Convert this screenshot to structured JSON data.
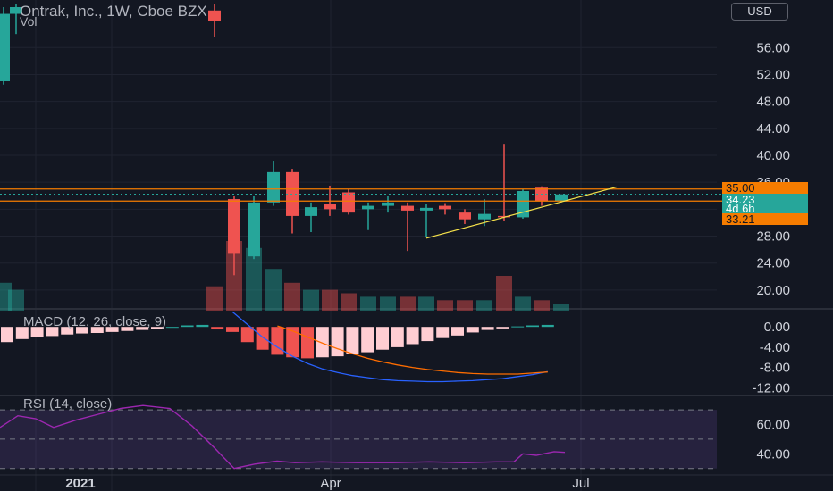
{
  "header": {
    "title": "Ontrak, Inc., 1W, Cboe BZX",
    "volume_label": "Vol",
    "currency": "USD"
  },
  "indicators": {
    "macd_label": "MACD (12, 26, close, 9)",
    "rsi_label": "RSI (14, close)"
  },
  "price_tags": {
    "resistance": "35.00",
    "last": "34.23",
    "countdown": "4d 6h",
    "support": "33.21"
  },
  "colors": {
    "background": "#131722",
    "up": "#26a69a",
    "down": "#ef5350",
    "level_line": "#f57c00",
    "trendline": "#f5e14a",
    "macd_line": "#2962ff",
    "signal_line": "#ff6d00",
    "rsi_line": "#9c27b0",
    "grid": "#1f2330"
  },
  "chart_data": [
    {
      "type": "candlestick",
      "title": "Ontrak, Inc., 1W, Cboe BZX",
      "ylim": [
        18,
        62
      ],
      "y_ticks": [
        "56.00",
        "52.00",
        "48.00",
        "44.00",
        "40.00",
        "36.00",
        "32.00",
        "28.00",
        "24.00",
        "20.00"
      ],
      "x_ticks": [
        "2021",
        "Apr",
        "Jul"
      ],
      "horizontal_levels": [
        35.0,
        33.21
      ],
      "last_price": 34.23,
      "trendline": [
        [
          27.7,
          35.3
        ]
      ],
      "candles": [
        {
          "o": 51.0,
          "h": 62.0,
          "l": 50.5,
          "c": 61.0
        },
        {
          "o": 61.0,
          "h": 62.5,
          "l": 58.0,
          "c": 62.0
        },
        {
          "o": 61.5,
          "h": 62.5,
          "l": 57.5,
          "c": 60.0
        },
        {
          "o": 33.5,
          "h": 34.0,
          "l": 22.2,
          "c": 25.5
        },
        {
          "o": 25.0,
          "h": 34.0,
          "l": 24.6,
          "c": 33.0
        },
        {
          "o": 33.0,
          "h": 39.2,
          "l": 32.5,
          "c": 37.5
        },
        {
          "o": 37.5,
          "h": 38.0,
          "l": 28.4,
          "c": 31.0
        },
        {
          "o": 31.0,
          "h": 33.0,
          "l": 28.6,
          "c": 32.3
        },
        {
          "o": 32.8,
          "h": 35.5,
          "l": 31.0,
          "c": 32.0
        },
        {
          "o": 34.5,
          "h": 35.0,
          "l": 31.2,
          "c": 31.5
        },
        {
          "o": 32.0,
          "h": 33.0,
          "l": 28.9,
          "c": 32.5
        },
        {
          "o": 32.5,
          "h": 34.0,
          "l": 31.5,
          "c": 33.0
        },
        {
          "o": 32.5,
          "h": 33.0,
          "l": 25.8,
          "c": 31.8
        },
        {
          "o": 31.8,
          "h": 32.8,
          "l": 27.8,
          "c": 32.2
        },
        {
          "o": 32.5,
          "h": 32.9,
          "l": 31.2,
          "c": 32.0
        },
        {
          "o": 31.5,
          "h": 32.0,
          "l": 29.8,
          "c": 30.5
        },
        {
          "o": 30.5,
          "h": 33.5,
          "l": 29.5,
          "c": 31.3
        },
        {
          "o": 31.0,
          "h": 41.7,
          "l": 30.3,
          "c": 30.8
        },
        {
          "o": 30.8,
          "h": 35.0,
          "l": 30.6,
          "c": 34.7
        },
        {
          "o": 35.2,
          "h": 35.4,
          "l": 32.5,
          "c": 33.2
        },
        {
          "o": 33.2,
          "h": 34.2,
          "l": 33.0,
          "c": 34.2
        }
      ],
      "volume": [
        0.4,
        0.3,
        0.35,
        1.0,
        0.9,
        0.6,
        0.4,
        0.3,
        0.3,
        0.25,
        0.2,
        0.2,
        0.2,
        0.2,
        0.15,
        0.15,
        0.15,
        0.5,
        0.2,
        0.15,
        0.1
      ]
    },
    {
      "type": "histogram+line",
      "title": "MACD (12, 26, close, 9)",
      "ylim": [
        -13,
        2.5
      ],
      "y_ticks": [
        "0.00",
        "-4.00",
        "-8.00",
        "-12.00"
      ],
      "histogram": [
        -3.0,
        -2.4,
        -2.0,
        -1.8,
        -1.5,
        -1.3,
        -1.2,
        -1.0,
        -0.8,
        -0.6,
        -0.4,
        0.0,
        0.3,
        0.4,
        -0.5,
        -1.0,
        -3.0,
        -4.5,
        -5.5,
        -6.0,
        -6.2,
        -6.0,
        -5.8,
        -5.4,
        -5.0,
        -4.5,
        -4.0,
        -3.4,
        -2.8,
        -2.2,
        -1.7,
        -1.1,
        -0.6,
        -0.3,
        0.1,
        0.3,
        0.4
      ],
      "macd": [
        null,
        null,
        null,
        null,
        null,
        null,
        null,
        null,
        null,
        null,
        null,
        null,
        null,
        null,
        null,
        3.0,
        0.5,
        -2.0,
        -4.0,
        -5.8,
        -7.2,
        -8.3,
        -9.0,
        -9.6,
        -10.0,
        -10.4,
        -10.6,
        -10.7,
        -10.8,
        -10.8,
        -10.7,
        -10.6,
        -10.4,
        -10.2,
        -9.8,
        -9.4,
        -8.8
      ],
      "signal": [
        null,
        null,
        null,
        null,
        null,
        null,
        null,
        null,
        null,
        null,
        null,
        null,
        null,
        null,
        null,
        null,
        null,
        null,
        0.2,
        -0.8,
        -2.0,
        -3.2,
        -4.3,
        -5.3,
        -6.2,
        -6.9,
        -7.5,
        -8.0,
        -8.4,
        -8.7,
        -9.0,
        -9.2,
        -9.3,
        -9.3,
        -9.3,
        -9.1,
        -8.9
      ]
    },
    {
      "type": "line",
      "title": "RSI (14, close)",
      "ylim": [
        28,
        78
      ],
      "y_ticks": [
        "60.00",
        "40.00"
      ],
      "bands": [
        70,
        50,
        30
      ],
      "values": [
        58,
        66,
        64,
        58,
        63,
        67,
        71,
        73,
        71,
        59,
        44,
        30,
        33,
        35,
        34,
        34.5,
        34,
        34,
        34.5,
        34,
        34.5,
        34.5,
        40,
        39,
        41.5,
        41
      ]
    }
  ]
}
